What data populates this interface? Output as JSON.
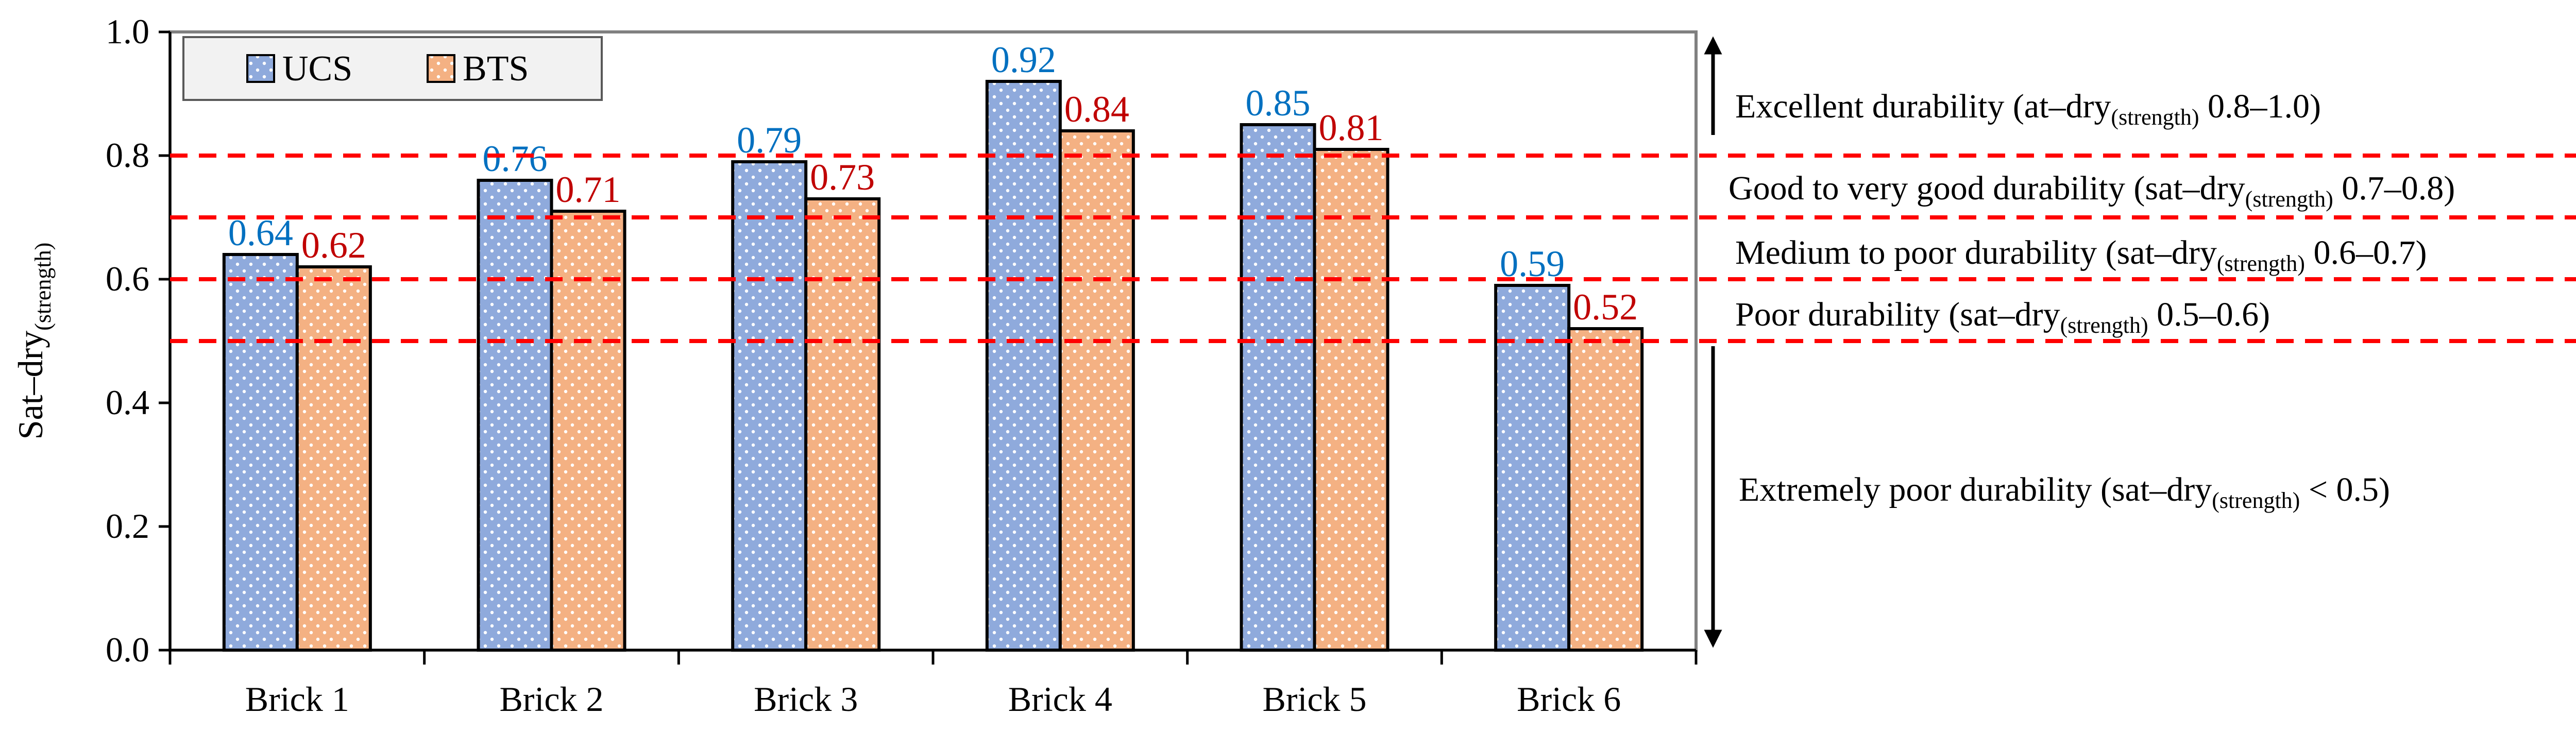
{
  "chart_data": {
    "type": "bar",
    "ylabel": {
      "main": "Sat–dry",
      "sub": "(strength)"
    },
    "ylim": [
      0,
      1.0
    ],
    "y_ticks": [
      "0.0",
      "0.2",
      "0.4",
      "0.6",
      "0.8",
      "1.0"
    ],
    "y_tick_values": [
      0,
      0.2,
      0.4,
      0.6,
      0.8,
      1.0
    ],
    "categories": [
      "Brick 1",
      "Brick 2",
      "Brick 3",
      "Brick 4",
      "Brick 5",
      "Brick 6"
    ],
    "series": [
      {
        "name": "UCS",
        "values": [
          0.64,
          0.76,
          0.79,
          0.92,
          0.85,
          0.59
        ],
        "labels": [
          "0.64",
          "0.76",
          "0.79",
          "0.92",
          "0.85",
          "0.59"
        ]
      },
      {
        "name": "BTS",
        "values": [
          0.62,
          0.71,
          0.73,
          0.84,
          0.81,
          0.52
        ],
        "labels": [
          "0.62",
          "0.71",
          "0.73",
          "0.84",
          "0.81",
          "0.52"
        ]
      }
    ],
    "legend": [
      "UCS",
      "BTS"
    ],
    "legend_position": "top-left",
    "threshold_lines": [
      0.8,
      0.7,
      0.6,
      0.5
    ],
    "annotations": [
      {
        "pre": "Excellent durability (at–dry",
        "sub": "(strength)",
        "post": " 0.8–1.0)"
      },
      {
        "pre": "Good to very good durability (sat–dry",
        "sub": "(strength)",
        "post": " 0.7–0.8)"
      },
      {
        "pre": "Medium to poor durability (sat–dry",
        "sub": "(strength)",
        "post": " 0.6–0.7)"
      },
      {
        "pre": "Poor durability (sat–dry",
        "sub": "(strength)",
        "post": " 0.5–0.6)"
      },
      {
        "pre": "Extremely poor durability (sat–dry",
        "sub": "(strength)",
        "post": " < 0.5)"
      }
    ],
    "colors": {
      "ucs_fill": "#8faadc",
      "bts_fill": "#f4b183",
      "ucs_label": "#0070c0",
      "bts_label": "#c00000",
      "threshold": "#ff0000",
      "axis": "#808080"
    }
  }
}
